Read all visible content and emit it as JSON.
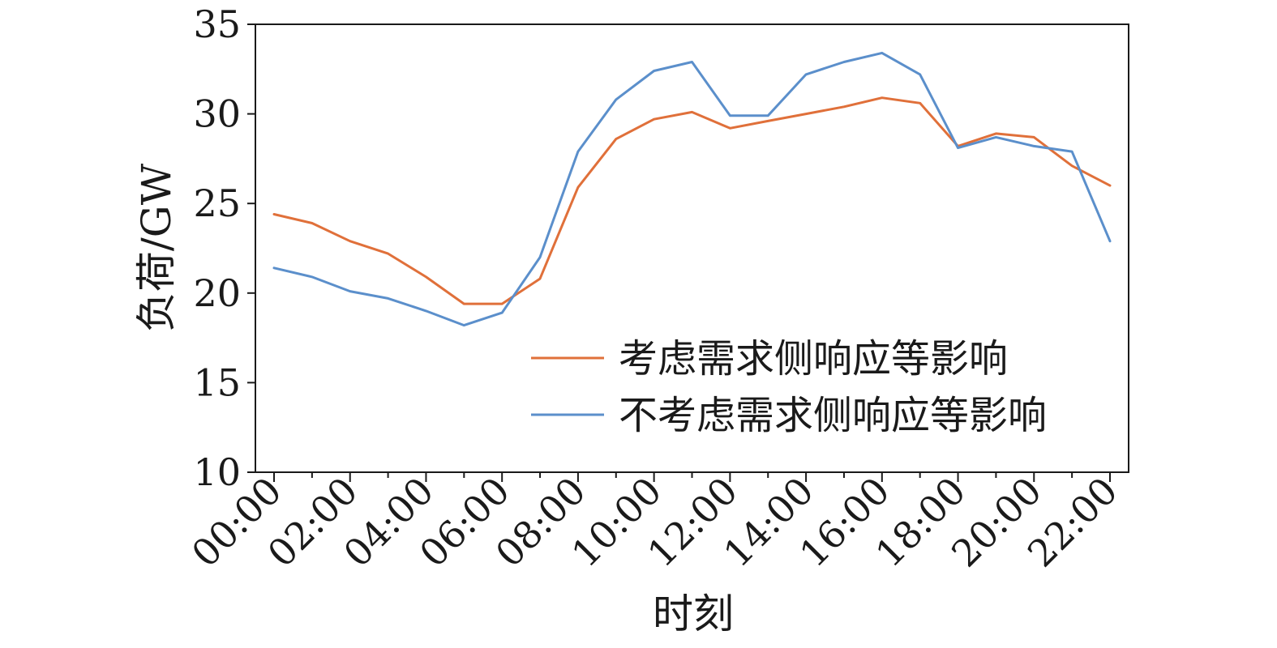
{
  "chart_data": {
    "type": "line",
    "xlabel": "时刻",
    "ylabel": "负荷/GW",
    "ylim": [
      10,
      35
    ],
    "yticks": [
      "10",
      "15",
      "20",
      "25",
      "30",
      "35"
    ],
    "x": [
      "00:00",
      "01:00",
      "02:00",
      "03:00",
      "04:00",
      "05:00",
      "06:00",
      "07:00",
      "08:00",
      "09:00",
      "10:00",
      "11:00",
      "12:00",
      "13:00",
      "14:00",
      "15:00",
      "16:00",
      "17:00",
      "18:00",
      "19:00",
      "20:00",
      "21:00",
      "22:00"
    ],
    "xtick_labels": [
      "00:00",
      "02:00",
      "04:00",
      "06:00",
      "08:00",
      "10:00",
      "12:00",
      "14:00",
      "16:00",
      "18:00",
      "20:00",
      "22:00"
    ],
    "legend_position": "lower-right",
    "grid": false,
    "series": [
      {
        "name": "考虑需求侧响应等影响",
        "color": "#E0703A",
        "values": [
          24.4,
          23.9,
          22.9,
          22.2,
          20.9,
          19.4,
          19.4,
          20.8,
          25.9,
          28.6,
          29.7,
          30.1,
          29.2,
          29.6,
          30.0,
          30.4,
          30.9,
          30.6,
          28.2,
          28.9,
          28.7,
          27.1,
          26.0
        ]
      },
      {
        "name": "不考虑需求侧响应等影响",
        "color": "#5B8FCB",
        "values": [
          21.4,
          20.9,
          20.1,
          19.7,
          19.0,
          18.2,
          18.9,
          22.0,
          27.9,
          30.8,
          32.4,
          32.9,
          29.9,
          29.9,
          32.2,
          32.9,
          33.4,
          32.2,
          28.1,
          28.7,
          28.2,
          27.9,
          22.9
        ]
      }
    ]
  }
}
